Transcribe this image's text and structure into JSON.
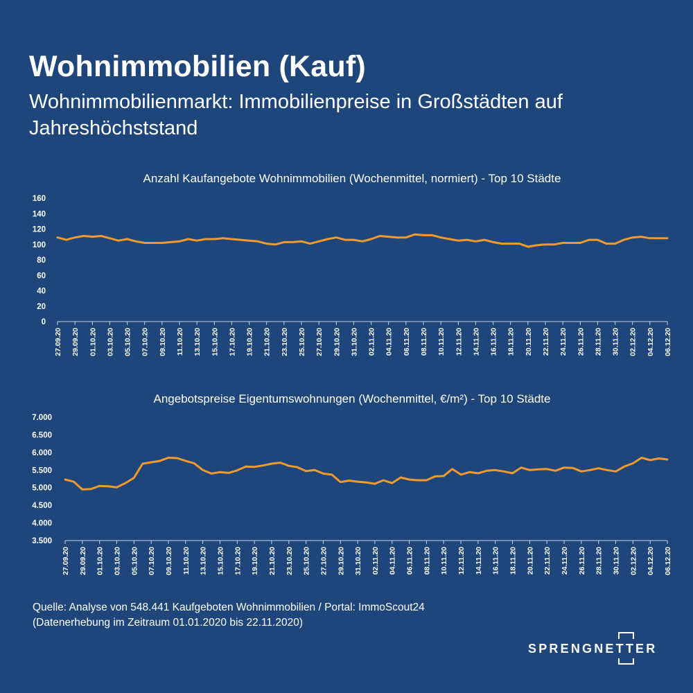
{
  "header": {
    "title": "Wohnimmobilien (Kauf)",
    "subtitle": "Wohnimmobilienmarkt: Immobilienpreise in Großstädten auf Jahreshöchststand"
  },
  "colors": {
    "background": "#1f467a",
    "line": "#ef9a2c",
    "text": "#ffffff",
    "axis": "#c9d4e3"
  },
  "chart_data": [
    {
      "type": "line",
      "title": "Anzahl Kaufangebote Wohnimmobilien (Wochenmittel, normiert) - Top 10 Städte",
      "xlabel": "",
      "ylabel": "",
      "ylim": [
        0,
        160
      ],
      "yticks": [
        "0",
        "20",
        "40",
        "60",
        "80",
        "100",
        "120",
        "140",
        "160"
      ],
      "grid": false,
      "x_tick_labels": [
        "27.09.20",
        "29.09.20",
        "01.10.20",
        "03.10.20",
        "05.10.20",
        "07.10.20",
        "09.10.20",
        "11.10.20",
        "13.10.20",
        "15.10.20",
        "17.10.20",
        "19.10.20",
        "21.10.20",
        "23.10.20",
        "25.10.20",
        "27.10.20",
        "29.10.20",
        "31.10.20",
        "02.11.20",
        "04.11.20",
        "06.11.20",
        "08.11.20",
        "10.11.20",
        "12.11.20",
        "14.11.20",
        "16.11.20",
        "18.11.20",
        "20.11.20",
        "22.11.20",
        "24.11.20",
        "26.11.20",
        "28.11.20",
        "30.11.20",
        "02.12.20",
        "04.12.20",
        "06.12.20"
      ],
      "values": [
        109,
        106,
        109,
        111,
        110,
        111,
        108,
        105,
        107,
        104,
        102,
        102,
        102,
        103,
        104,
        107,
        105,
        107,
        107,
        108,
        107,
        106,
        105,
        104,
        101,
        100,
        103,
        103,
        104,
        101,
        104,
        107,
        109,
        106,
        106,
        104,
        107,
        111,
        110,
        109,
        109,
        113,
        112,
        112,
        109,
        107,
        105,
        106,
        104,
        106,
        103,
        101,
        101,
        101,
        97,
        99,
        100,
        100,
        102,
        102,
        102,
        106,
        106,
        101,
        101,
        106,
        109,
        110,
        108,
        108,
        108
      ]
    },
    {
      "type": "line",
      "title": "Angebotspreise Eigentumswohnungen (Wochenmittel, €/m²) - Top 10 Städte",
      "xlabel": "",
      "ylabel": "",
      "ylim": [
        3500,
        7000
      ],
      "yticks": [
        "3.500",
        "4.000",
        "4.500",
        "5.000",
        "5.500",
        "6.000",
        "6.500",
        "7.000"
      ],
      "grid": false,
      "x_tick_labels": [
        "27.09.20",
        "29.09.20",
        "01.10.20",
        "03.10.20",
        "05.10.20",
        "07.10.20",
        "09.10.20",
        "11.10.20",
        "13.10.20",
        "15.10.20",
        "17.10.20",
        "19.10.20",
        "21.10.20",
        "23.10.20",
        "25.10.20",
        "27.10.20",
        "29.10.20",
        "31.10.20",
        "02.11.20",
        "04.11.20",
        "06.11.20",
        "08.11.20",
        "10.11.20",
        "12.11.20",
        "14.11.20",
        "16.11.20",
        "18.11.20",
        "20.11.20",
        "22.11.20",
        "24.11.20",
        "26.11.20",
        "28.11.20",
        "30.11.20",
        "02.12.20",
        "04.12.20",
        "06.12.20"
      ],
      "values": [
        5230,
        5170,
        4950,
        4960,
        5050,
        5040,
        5010,
        5130,
        5280,
        5680,
        5720,
        5760,
        5850,
        5840,
        5760,
        5690,
        5500,
        5400,
        5440,
        5420,
        5490,
        5600,
        5590,
        5630,
        5680,
        5710,
        5620,
        5580,
        5470,
        5500,
        5400,
        5370,
        5160,
        5200,
        5170,
        5150,
        5110,
        5210,
        5130,
        5290,
        5230,
        5210,
        5210,
        5320,
        5330,
        5530,
        5370,
        5440,
        5410,
        5480,
        5500,
        5460,
        5410,
        5570,
        5500,
        5520,
        5530,
        5480,
        5570,
        5560,
        5460,
        5500,
        5550,
        5500,
        5460,
        5600,
        5690,
        5850,
        5780,
        5830,
        5800
      ]
    }
  ],
  "footer": {
    "source_line1": "Quelle: Analyse von 548.441 Kaufgeboten Wohnimmobilien / Portal: ImmoScout24",
    "source_line2": "(Datenerhebung im Zeitraum 01.01.2020 bis 22.11.2020)",
    "logo_text": "SPRENGNETTER"
  }
}
